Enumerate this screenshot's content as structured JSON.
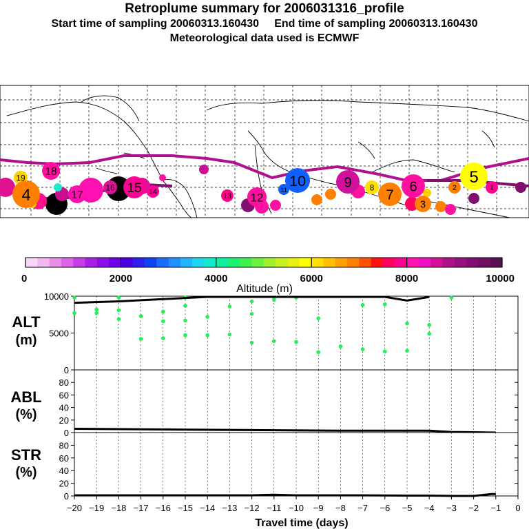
{
  "header": {
    "title": "Retroplume summary for 2006031316_profile",
    "subtitle": "Start time of sampling 20060313.160430     End time of sampling 20060313.160430",
    "met_line": "Meteorological data used is ECMWF"
  },
  "colors": {
    "track": "#b0108f",
    "scale": [
      "#f7d6f7",
      "#f0b8f0",
      "#e890e8",
      "#dc64e6",
      "#c83ce6",
      "#a820e6",
      "#8a10e6",
      "#6c00e6",
      "#4a00dc",
      "#3020f0",
      "#1040f0",
      "#1a6cff",
      "#1e90ff",
      "#22b4ff",
      "#1ed8f0",
      "#10eccc",
      "#10f0a0",
      "#20f070",
      "#40f050",
      "#70f040",
      "#a0f030",
      "#c8f020",
      "#e8f010",
      "#ffff00",
      "#ffe000",
      "#ffc000",
      "#ffa000",
      "#ff8000",
      "#ff5000",
      "#ff1010",
      "#ff0060",
      "#ff0090",
      "#ff10b0",
      "#ee10c0",
      "#d01098",
      "#b01088",
      "#961080",
      "#801070",
      "#6c1060",
      "#5a1050"
    ],
    "green_marker": "#22ee55"
  },
  "chart_data": {
    "type": "scatter",
    "map": {
      "title": "Retroplume summary for 2006031316_profile",
      "plume_track_note": "magenta line = plume centroid track",
      "clusters": [
        {
          "label": "19",
          "day": -19,
          "color": "#ffd000"
        },
        {
          "label": "18",
          "day": -18,
          "color": "#ff10a0"
        },
        {
          "label": "17",
          "day": -17,
          "color": "#ff10b0"
        },
        {
          "label": "16",
          "day": -16,
          "color": "#e0109c"
        },
        {
          "label": "15",
          "day": -15,
          "color": "#ff0090"
        },
        {
          "label": "14",
          "day": -14,
          "color": "#ff0098"
        },
        {
          "label": "13",
          "day": -13,
          "color": "#ff0088"
        },
        {
          "label": "12",
          "day": -12,
          "color": "#ff10a0"
        },
        {
          "label": "11",
          "day": -11,
          "color": "#1060ff"
        },
        {
          "label": "10",
          "day": -10,
          "color": "#1060ff"
        },
        {
          "label": "9",
          "day": -9,
          "color": "#d0109c"
        },
        {
          "label": "8",
          "day": -8,
          "color": "#ffe000"
        },
        {
          "label": "7",
          "day": -7,
          "color": "#ff8000"
        },
        {
          "label": "6",
          "day": -6,
          "color": "#ff10a0"
        },
        {
          "label": "5",
          "day": -5,
          "color": "#ffff00"
        },
        {
          "label": "4",
          "day": -4,
          "color": "#ff8000"
        },
        {
          "label": "3",
          "day": -3,
          "color": "#ff8000"
        },
        {
          "label": "2",
          "day": -2,
          "color": "#ff8000"
        },
        {
          "label": "1",
          "day": -1,
          "color": "#ff0090"
        }
      ]
    },
    "colorbar": {
      "label": "Altitude (m)",
      "min": 0,
      "max": 10000,
      "ticks": [
        "0",
        "2000",
        "4000",
        "6000",
        "8000",
        "10000"
      ]
    },
    "panels": [
      {
        "id": "alt",
        "label_line1": "ALT",
        "label_line2": "(m)",
        "ylim": [
          0,
          10000
        ],
        "yticks": [
          "0",
          "5000",
          "10000"
        ],
        "series": [
          {
            "name": "boundary",
            "x": [
              -20,
              -18,
              -16,
              -14,
              -12,
              -10,
              -8,
              -6,
              -5,
              -4
            ],
            "y": [
              9100,
              9300,
              9600,
              9950,
              10000,
              10000,
              10000,
              10000,
              9400,
              9900
            ]
          }
        ],
        "points": [
          {
            "x": -20,
            "y": 7700
          },
          {
            "x": -19,
            "y": 8200
          },
          {
            "x": -19,
            "y": 7700
          },
          {
            "x": -18,
            "y": 8100
          },
          {
            "x": -18,
            "y": 6900
          },
          {
            "x": -17,
            "y": 7300
          },
          {
            "x": -17,
            "y": 4200
          },
          {
            "x": -16,
            "y": 7900
          },
          {
            "x": -16,
            "y": 6600
          },
          {
            "x": -16,
            "y": 4300
          },
          {
            "x": -15,
            "y": 8700
          },
          {
            "x": -15,
            "y": 6700
          },
          {
            "x": -15,
            "y": 4700
          },
          {
            "x": -14,
            "y": 7200
          },
          {
            "x": -14,
            "y": 4700
          },
          {
            "x": -13,
            "y": 8600
          },
          {
            "x": -13,
            "y": 4800
          },
          {
            "x": -12,
            "y": 9300
          },
          {
            "x": -12,
            "y": 7600
          },
          {
            "x": -12,
            "y": 3700
          },
          {
            "x": -11,
            "y": 9500
          },
          {
            "x": -11,
            "y": 3900
          },
          {
            "x": -10,
            "y": 3800
          },
          {
            "x": -9,
            "y": 7000
          },
          {
            "x": -9,
            "y": 2400
          },
          {
            "x": -8,
            "y": 3200
          },
          {
            "x": -7,
            "y": 2800
          },
          {
            "x": -7,
            "y": 8800
          },
          {
            "x": -6,
            "y": 2500
          },
          {
            "x": -6,
            "y": 8900
          },
          {
            "x": -5,
            "y": 6300
          },
          {
            "x": -5,
            "y": 2600
          },
          {
            "x": -4,
            "y": 6100
          },
          {
            "x": -4,
            "y": 4900
          },
          {
            "x": -3,
            "y": 9800
          },
          {
            "x": -20,
            "y": 9900
          },
          {
            "x": -18,
            "y": 9900
          },
          {
            "x": -15,
            "y": 9950
          },
          {
            "x": -11,
            "y": 9950
          },
          {
            "x": -10,
            "y": 9950
          }
        ]
      },
      {
        "id": "abl",
        "label_line1": "ABL",
        "label_line2": "(%)",
        "ylim": [
          0,
          100
        ],
        "yticks": [
          "0",
          "20",
          "40",
          "60",
          "80"
        ],
        "series": [
          {
            "name": "abl",
            "x": [
              -20,
              -16,
              -12,
              -8,
              -4,
              -3,
              -2,
              -1
            ],
            "y": [
              6,
              5,
              4,
              3,
              3,
              1,
              0.5,
              0
            ]
          }
        ]
      },
      {
        "id": "str",
        "label_line1": "STR",
        "label_line2": "(%)",
        "ylim": [
          0,
          100
        ],
        "yticks": [
          "0",
          "20",
          "40",
          "60",
          "80"
        ],
        "series": [
          {
            "name": "str",
            "x": [
              -20,
              -16,
              -12,
              -11,
              -10,
              -8,
              -7,
              -5,
              -4,
              -3,
              -2,
              -1.2,
              -1
            ],
            "y": [
              1,
              1,
              1,
              2,
              1,
              1,
              1,
              0.5,
              0.5,
              0,
              0,
              3,
              3
            ]
          }
        ]
      }
    ],
    "xaxis": {
      "label": "Travel time (days)",
      "range": [
        -20,
        0
      ],
      "ticks": [
        "−20",
        "−19",
        "−18",
        "−17",
        "−16",
        "−15",
        "−14",
        "−13",
        "−12",
        "−11",
        "−10",
        "−9",
        "−8",
        "−7",
        "−6",
        "−5",
        "−4",
        "−3",
        "−2",
        "−1",
        "0"
      ]
    }
  }
}
